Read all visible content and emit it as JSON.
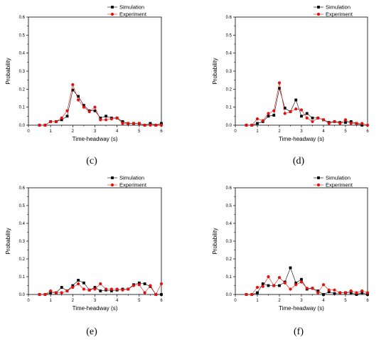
{
  "chart_data": [
    {
      "type": "line",
      "panel_label": "(c)",
      "xlabel": "Time-headway (s)",
      "ylabel": "Probability",
      "xlim": [
        0,
        6
      ],
      "ylim": [
        0,
        0.6
      ],
      "xticks": [
        "0",
        "1",
        "2",
        "3",
        "4",
        "5",
        "6"
      ],
      "yticks": [
        "0.0",
        "0.1",
        "0.2",
        "0.3",
        "0.4",
        "0.5",
        "0.6"
      ],
      "legend_position": "top-right",
      "series": [
        {
          "name": "Simulation",
          "color": "#000000",
          "marker": "square",
          "x": [
            0.5,
            0.75,
            1.0,
            1.25,
            1.5,
            1.75,
            2.0,
            2.25,
            2.5,
            2.75,
            3.0,
            3.25,
            3.5,
            3.75,
            4.0,
            4.25,
            4.5,
            4.75,
            5.0,
            5.25,
            5.5,
            5.75,
            6.0
          ],
          "y": [
            0.0,
            0.0,
            0.02,
            0.02,
            0.03,
            0.05,
            0.195,
            0.16,
            0.11,
            0.08,
            0.08,
            0.04,
            0.05,
            0.04,
            0.04,
            0.02,
            0.01,
            0.01,
            0.01,
            0.0,
            0.01,
            0.0,
            0.01
          ]
        },
        {
          "name": "Experiment",
          "color": "#e8100f",
          "marker": "circle",
          "x": [
            0.5,
            0.75,
            1.0,
            1.25,
            1.5,
            1.75,
            2.0,
            2.25,
            2.5,
            2.75,
            3.0,
            3.25,
            3.5,
            3.75,
            4.0,
            4.25,
            4.5,
            4.75,
            5.0,
            5.25,
            5.5,
            5.75,
            6.0
          ],
          "y": [
            0.0,
            0.0,
            0.02,
            0.02,
            0.04,
            0.08,
            0.225,
            0.14,
            0.1,
            0.075,
            0.1,
            0.03,
            0.03,
            0.035,
            0.04,
            0.01,
            0.01,
            0.01,
            0.01,
            0.0,
            0.0,
            0.0,
            0.0
          ]
        }
      ]
    },
    {
      "type": "line",
      "panel_label": "(d)",
      "xlabel": "Time-headway (s)",
      "ylabel": "Probability",
      "xlim": [
        0,
        6
      ],
      "ylim": [
        0,
        0.6
      ],
      "xticks": [
        "0",
        "1",
        "2",
        "3",
        "4",
        "5",
        "6"
      ],
      "yticks": [
        "0.0",
        "0.1",
        "0.2",
        "0.3",
        "0.4",
        "0.5",
        "0.6"
      ],
      "legend_position": "top-right",
      "series": [
        {
          "name": "Simulation",
          "color": "#000000",
          "marker": "square",
          "x": [
            0.5,
            0.75,
            1.0,
            1.25,
            1.5,
            1.75,
            2.0,
            2.25,
            2.5,
            2.75,
            3.0,
            3.25,
            3.5,
            3.75,
            4.0,
            4.25,
            4.5,
            4.75,
            5.0,
            5.25,
            5.5,
            5.75
          ],
          "y": [
            0.0,
            0.0,
            0.01,
            0.02,
            0.05,
            0.055,
            0.205,
            0.095,
            0.075,
            0.14,
            0.05,
            0.065,
            0.04,
            0.04,
            0.03,
            0.015,
            0.02,
            0.015,
            0.015,
            0.02,
            0.01,
            0.0
          ]
        },
        {
          "name": "Experiment",
          "color": "#e8100f",
          "marker": "circle",
          "x": [
            0.5,
            0.75,
            1.0,
            1.25,
            1.5,
            1.75,
            2.0,
            2.25,
            2.5,
            2.75,
            3.0,
            3.25,
            3.5,
            3.75,
            4.0,
            4.25,
            4.5,
            4.75,
            5.0,
            5.25,
            5.5,
            5.75,
            6.0
          ],
          "y": [
            0.0,
            0.0,
            0.035,
            0.025,
            0.065,
            0.08,
            0.235,
            0.065,
            0.075,
            0.09,
            0.085,
            0.04,
            0.02,
            0.04,
            0.03,
            0.01,
            0.02,
            0.01,
            0.03,
            0.01,
            0.01,
            0.01,
            0.0
          ]
        }
      ]
    },
    {
      "type": "line",
      "panel_label": "(e)",
      "xlabel": "Time-headway (s)",
      "ylabel": "Probability",
      "xlim": [
        0,
        6
      ],
      "ylim": [
        0,
        0.6
      ],
      "xticks": [
        "0",
        "1",
        "2",
        "3",
        "4",
        "5",
        "6"
      ],
      "yticks": [
        "0.0",
        "0.1",
        "0.2",
        "0.3",
        "0.4",
        "0.5",
        "0.6"
      ],
      "legend_position": "top-right",
      "series": [
        {
          "name": "Simulation",
          "color": "#000000",
          "marker": "square",
          "x": [
            0.5,
            0.75,
            1.0,
            1.25,
            1.5,
            1.75,
            2.0,
            2.25,
            2.5,
            2.75,
            3.0,
            3.25,
            3.5,
            3.75,
            4.0,
            4.25,
            4.5,
            4.75,
            5.0,
            5.25,
            5.5,
            5.75,
            6.0
          ],
          "y": [
            0.0,
            0.0,
            0.01,
            0.01,
            0.04,
            0.02,
            0.05,
            0.08,
            0.065,
            0.025,
            0.04,
            0.02,
            0.025,
            0.02,
            0.025,
            0.03,
            0.03,
            0.055,
            0.065,
            0.06,
            0.045,
            0.0,
            0.0
          ]
        },
        {
          "name": "Experiment",
          "color": "#e8100f",
          "marker": "circle",
          "x": [
            0.5,
            0.75,
            1.0,
            1.25,
            1.5,
            1.75,
            2.0,
            2.25,
            2.5,
            2.75,
            3.0,
            3.25,
            3.5,
            3.75,
            4.0,
            4.25,
            4.5,
            4.75,
            5.0,
            5.25,
            5.5,
            5.75,
            6.0
          ],
          "y": [
            0.0,
            0.0,
            0.02,
            0.01,
            0.01,
            0.02,
            0.04,
            0.06,
            0.03,
            0.025,
            0.03,
            0.06,
            0.03,
            0.03,
            0.03,
            0.025,
            0.03,
            0.05,
            0.055,
            0.01,
            0.05,
            0.0,
            0.06
          ]
        }
      ]
    },
    {
      "type": "line",
      "panel_label": "(f)",
      "xlabel": "Time-headway (s)",
      "ylabel": "Probability",
      "xlim": [
        0,
        6
      ],
      "ylim": [
        0,
        0.6
      ],
      "xticks": [
        "0",
        "1",
        "2",
        "3",
        "4",
        "5",
        "6"
      ],
      "yticks": [
        "0.0",
        "0.1",
        "0.2",
        "0.3",
        "0.4",
        "0.5",
        "0.6"
      ],
      "legend_position": "top-right",
      "series": [
        {
          "name": "Simulation",
          "color": "#000000",
          "marker": "square",
          "x": [
            0.5,
            0.75,
            1.0,
            1.25,
            1.5,
            1.75,
            2.0,
            2.25,
            2.5,
            2.75,
            3.0,
            3.25,
            3.5,
            3.75,
            4.0,
            4.25,
            4.5,
            4.75,
            5.0,
            5.25,
            5.5,
            5.75,
            6.0
          ],
          "y": [
            0.0,
            0.0,
            0.01,
            0.06,
            0.05,
            0.05,
            0.05,
            0.07,
            0.15,
            0.065,
            0.085,
            0.03,
            0.035,
            0.02,
            0.0,
            0.015,
            0.005,
            0.01,
            0.01,
            0.01,
            0.0,
            0.01,
            0.0
          ]
        },
        {
          "name": "Experiment",
          "color": "#e8100f",
          "marker": "circle",
          "x": [
            0.5,
            0.75,
            1.0,
            1.25,
            1.5,
            1.75,
            2.0,
            2.25,
            2.5,
            2.75,
            3.0,
            3.25,
            3.5,
            3.75,
            4.0,
            4.25,
            4.5,
            4.75,
            5.0,
            5.25,
            5.5,
            5.75,
            6.0
          ],
          "y": [
            0.0,
            0.0,
            0.04,
            0.045,
            0.1,
            0.05,
            0.095,
            0.065,
            0.03,
            0.055,
            0.07,
            0.035,
            0.035,
            0.01,
            0.055,
            0.025,
            0.025,
            0.01,
            0.01,
            0.02,
            0.01,
            0.02,
            0.01
          ]
        }
      ]
    }
  ]
}
